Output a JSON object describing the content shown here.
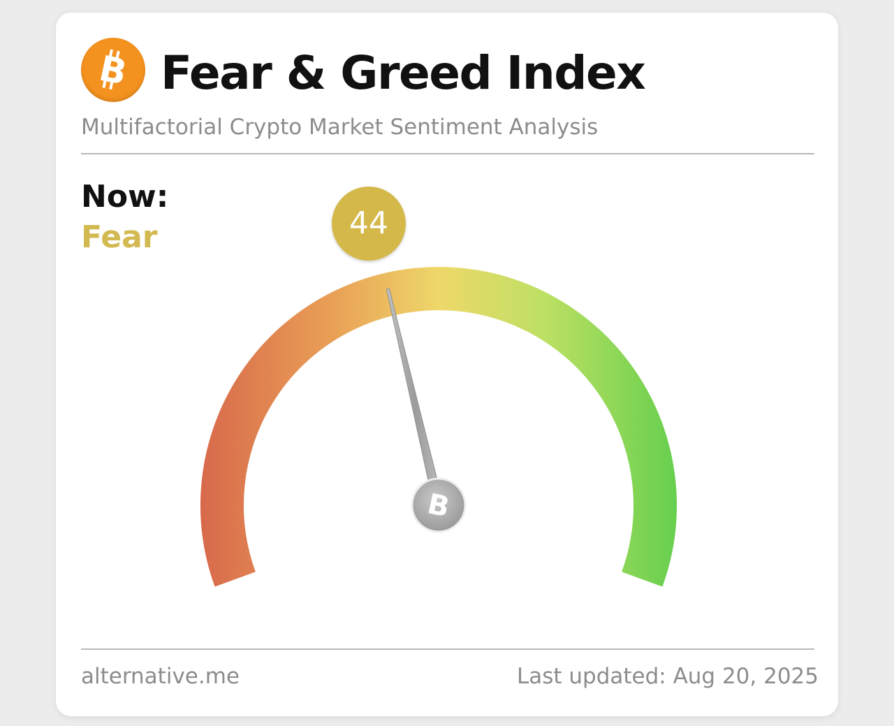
{
  "header": {
    "logo_icon": "bitcoin-icon",
    "logo_color": "#f4921f",
    "title": "Fear & Greed Index",
    "subtitle": "Multifactorial Crypto Market Sentiment Analysis"
  },
  "current": {
    "now_label": "Now:",
    "classification": "Fear",
    "value": "44",
    "value_number": 44,
    "scale_min": 0,
    "scale_max": 100,
    "accent_color": "#d4b84a"
  },
  "gauge": {
    "gradient_colors": [
      "#d86a4c",
      "#e9a156",
      "#eed86a",
      "#bde063",
      "#66cf4e"
    ],
    "needle_color": "#a8a8a8",
    "hub_icon": "bitcoin-icon"
  },
  "footer": {
    "source": "alternative.me",
    "last_updated": "Last updated: Aug 20, 2025"
  }
}
